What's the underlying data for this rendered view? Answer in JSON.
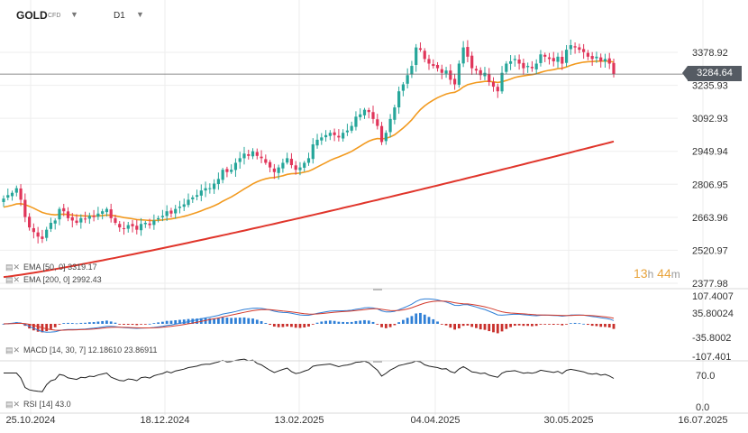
{
  "header": {
    "symbol": "GOLD",
    "type": "CFD",
    "timeframe": "D1"
  },
  "price_axis": {
    "ticks": [
      3378.92,
      3235.93,
      3092.93,
      2949.94,
      2806.95,
      2663.96,
      2520.97,
      2377.98
    ],
    "tick_labels": [
      "3378.92",
      "3235.93",
      "3092.93",
      "2949.94",
      "2806.95",
      "2663.96",
      "2520.97",
      "2377.98"
    ],
    "last_price": 3284.64,
    "last_price_label": "3284.64"
  },
  "time_axis": {
    "labels": [
      "25.10.2024",
      "18.12.2024",
      "13.02.2025",
      "04.04.2025",
      "30.05.2025",
      "16.07.2025"
    ]
  },
  "indicators": {
    "ema50": {
      "label": "EMA [50, 0]",
      "value": "3319.17",
      "color": "#f29a1f"
    },
    "ema200": {
      "label": "EMA [200, 0]",
      "value": "2992.43",
      "color": "#e0352b"
    },
    "macd": {
      "label": "MACD [14, 30, 7]",
      "value1": "12.18610",
      "value2": "23.86911",
      "axis_labels": [
        "107.4007",
        "35.80024",
        "-35.8002",
        "-107.401"
      ]
    },
    "rsi": {
      "label": "RSI [14]",
      "value": "43.0",
      "axis_labels": [
        "70.0",
        "0.0"
      ]
    }
  },
  "timer": {
    "hours": "13",
    "hours_unit": "h",
    "minutes": "44",
    "minutes_unit": "m"
  },
  "colors": {
    "up": "#26a69a",
    "down": "#e0355a",
    "ema50": "#f29a1f",
    "ema200": "#e0352b",
    "macd_line": "#2f7fd6",
    "signal_line": "#d33a2c"
  },
  "chart_data": {
    "type": "candlestick",
    "instrument": "GOLD",
    "x_labels": [
      "25.10.2024",
      "18.12.2024",
      "13.02.2025",
      "04.04.2025",
      "30.05.2025",
      "16.07.2025"
    ],
    "ylim": [
      2377.98,
      3450
    ],
    "closes": [
      2745,
      2760,
      2770,
      2790,
      2740,
      2665,
      2620,
      2600,
      2580,
      2570,
      2610,
      2640,
      2650,
      2700,
      2690,
      2660,
      2650,
      2640,
      2660,
      2655,
      2670,
      2665,
      2680,
      2690,
      2700,
      2660,
      2640,
      2620,
      2615,
      2630,
      2625,
      2610,
      2635,
      2640,
      2630,
      2650,
      2660,
      2670,
      2690,
      2680,
      2700,
      2710,
      2720,
      2740,
      2750,
      2760,
      2780,
      2790,
      2790,
      2810,
      2830,
      2870,
      2860,
      2870,
      2900,
      2920,
      2940,
      2930,
      2950,
      2930,
      2920,
      2900,
      2880,
      2860,
      2880,
      2900,
      2920,
      2890,
      2870,
      2880,
      2900,
      2920,
      2980,
      3000,
      3010,
      3020,
      3030,
      3020,
      3010,
      3030,
      3040,
      3060,
      3100,
      3110,
      3130,
      3120,
      3090,
      3060,
      2990,
      3030,
      3090,
      3140,
      3210,
      3240,
      3280,
      3320,
      3400,
      3390,
      3350,
      3330,
      3320,
      3310,
      3290,
      3300,
      3260,
      3240,
      3330,
      3400,
      3360,
      3310,
      3300,
      3280,
      3290,
      3250,
      3230,
      3210,
      3290,
      3330,
      3340,
      3350,
      3330,
      3310,
      3320,
      3310,
      3330,
      3370,
      3360,
      3350,
      3340,
      3360,
      3330,
      3390,
      3410,
      3400,
      3390,
      3380,
      3360,
      3350,
      3360,
      3340,
      3350,
      3330,
      3284.64
    ],
    "series": [
      {
        "name": "EMA [50, 0]",
        "last": 3319.17
      },
      {
        "name": "EMA [200, 0]",
        "last": 2992.43
      },
      {
        "name": "MACD [14, 30, 7]",
        "last": [
          12.1861,
          23.86911
        ]
      },
      {
        "name": "RSI [14]",
        "last": 43.0
      }
    ],
    "grid": true
  }
}
